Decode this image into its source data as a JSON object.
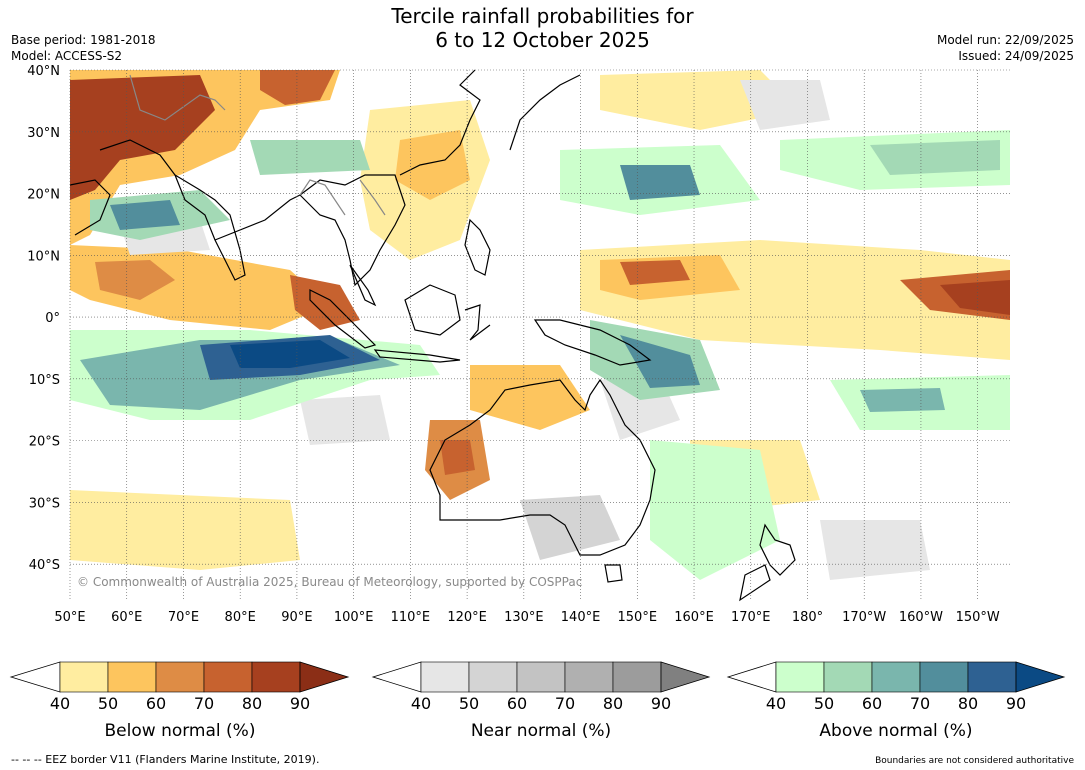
{
  "header": {
    "title_line1": "Tercile rainfall probabilities for",
    "title_line2": "6 to 12 October 2025",
    "base_period": "Base period: 1981-2018",
    "model": "Model: ACCESS-S2",
    "model_run": "Model run: 22/09/2025",
    "issued": "Issued: 24/09/2025"
  },
  "map": {
    "lat_labels": [
      "40°N",
      "30°N",
      "20°N",
      "10°N",
      "0°",
      "10°S",
      "20°S",
      "30°S",
      "40°S"
    ],
    "lat_values": [
      40,
      30,
      20,
      10,
      0,
      -10,
      -20,
      -30,
      -40
    ],
    "lon_labels": [
      "50°E",
      "60°E",
      "70°E",
      "80°E",
      "90°E",
      "100°E",
      "110°E",
      "120°E",
      "130°E",
      "140°E",
      "150°E",
      "160°E",
      "170°E",
      "180°",
      "170°W",
      "160°W",
      "150°W"
    ],
    "lon_values": [
      50,
      60,
      70,
      80,
      90,
      100,
      110,
      120,
      130,
      140,
      150,
      160,
      170,
      180,
      190,
      200,
      210
    ],
    "lon_range": [
      50,
      215.7
    ],
    "lat_range": [
      -45.8,
      40
    ],
    "copyright": "© Commonwealth of Australia 2025, Bureau of Meteorology, supported by COSPPac"
  },
  "colorbars": [
    {
      "label": "Below normal (%)",
      "ticks": [
        "40",
        "50",
        "60",
        "70",
        "80",
        "90"
      ],
      "colors": [
        "#ffeda0",
        "#fdc55e",
        "#de8c45",
        "#c7622f",
        "#a6401f"
      ],
      "over": "#8b2e16"
    },
    {
      "label": "Near normal (%)",
      "ticks": [
        "40",
        "50",
        "60",
        "70",
        "80",
        "90"
      ],
      "colors": [
        "#e6e6e6",
        "#d4d4d4",
        "#c3c3c3",
        "#b0b0b0",
        "#9c9c9c"
      ],
      "over": "#808080"
    },
    {
      "label": "Above normal (%)",
      "ticks": [
        "40",
        "50",
        "60",
        "70",
        "80",
        "90"
      ],
      "colors": [
        "#ccffcc",
        "#a3d9b5",
        "#7ab6ad",
        "#528e9c",
        "#2e6192"
      ],
      "over": "#0b4a84"
    }
  ],
  "footer": {
    "eez_note": "--  --  -- EEZ border V11 (Flanders Marine Institute, 2019).",
    "boundary_note": "Boundaries are not considered authoritative"
  }
}
